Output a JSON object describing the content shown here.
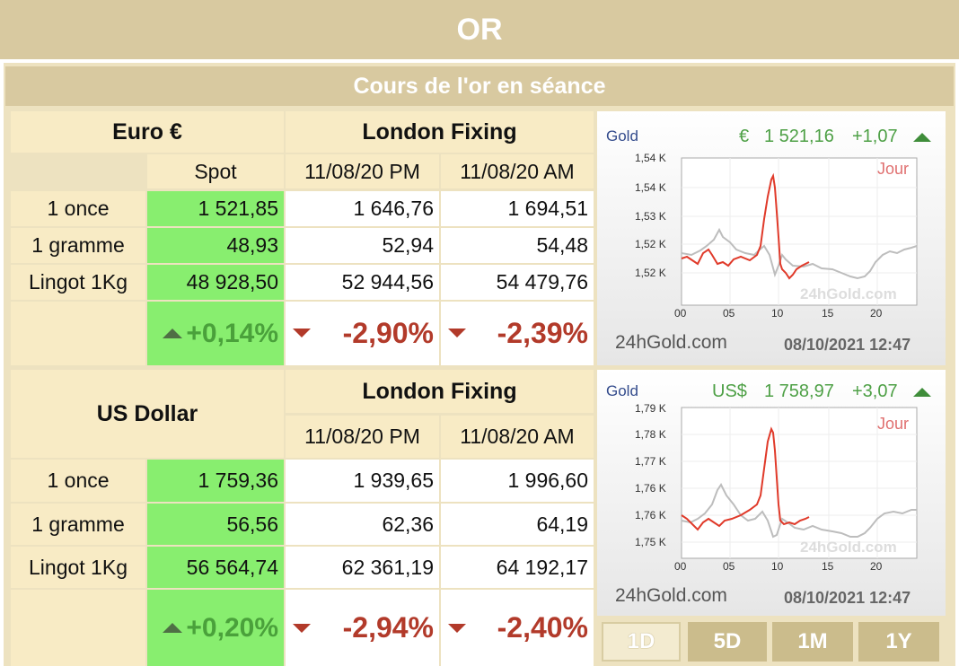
{
  "header": {
    "title": "OR",
    "subtitle": "Cours de l'or en séance"
  },
  "euro": {
    "title": "Euro €",
    "spot": "Spot",
    "fixing": "London Fixing",
    "pm": "11/08/20 PM",
    "am": "11/08/20 AM",
    "rows": [
      {
        "label": "1 once",
        "spot": "1 521,85",
        "pm": "1 646,76",
        "am": "1 694,51"
      },
      {
        "label": "1 gramme",
        "spot": "48,93",
        "pm": "52,94",
        "am": "54,48"
      },
      {
        "label": "Lingot 1Kg",
        "spot": "48 928,50",
        "pm": "52 944,56",
        "am": "54 479,76"
      }
    ],
    "change": {
      "spot": "+0,14%",
      "pm": "-2,90%",
      "am": "-2,39%"
    }
  },
  "usd": {
    "title": "US Dollar",
    "fixing": "London Fixing",
    "pm": "11/08/20 PM",
    "am": "11/08/20 AM",
    "rows": [
      {
        "label": "1 once",
        "spot": "1 759,36",
        "pm": "1 939,65",
        "am": "1 996,60"
      },
      {
        "label": "1 gramme",
        "spot": "56,56",
        "pm": "62,36",
        "am": "64,19"
      },
      {
        "label": "Lingot 1Kg",
        "spot": "56 564,74",
        "pm": "62 361,19",
        "am": "64 192,17"
      }
    ],
    "change": {
      "spot": "+0,20%",
      "pm": "-2,94%",
      "am": "-2,40%"
    }
  },
  "chart_eur": {
    "gold": "Gold",
    "currency": "€",
    "price": "1 521,16",
    "change": "+1,07",
    "jour": "Jour",
    "site": "24hGold.com",
    "watermark": "24hGold.com",
    "date": "08/10/2021 12:47",
    "yticks": [
      "1,54 K",
      "1,54 K",
      "1,53 K",
      "1,52 K",
      "1,52 K"
    ],
    "xticks": [
      "00",
      "05",
      "10",
      "15",
      "20"
    ]
  },
  "chart_usd": {
    "gold": "Gold",
    "currency": "US$",
    "price": "1 758,97",
    "change": "+3,07",
    "jour": "Jour",
    "site": "24hGold.com",
    "watermark": "24hGold.com",
    "date": "08/10/2021 12:47",
    "yticks": [
      "1,79 K",
      "1,78 K",
      "1,77 K",
      "1,76 K",
      "1,76 K",
      "1,75 K"
    ],
    "xticks": [
      "00",
      "05",
      "10",
      "15",
      "20"
    ]
  },
  "periods": [
    "1D",
    "5D",
    "1M",
    "1Y"
  ],
  "colors": {
    "band": "#d8c9a0",
    "panel": "#ede2c0",
    "cell": "#f8ebc5",
    "green": "#88ee6f",
    "up": "#4aa13b",
    "down": "#b23a2a",
    "line_today": "#e03a2a",
    "line_prev": "#bdbdbd"
  }
}
